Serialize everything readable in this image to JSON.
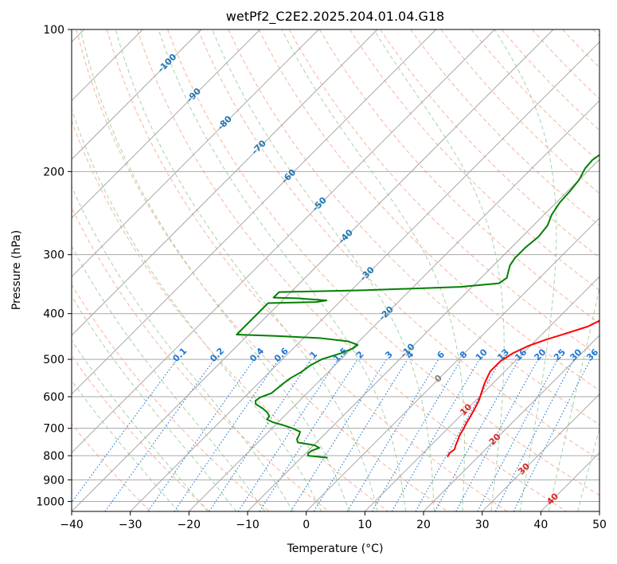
{
  "chart_data": {
    "type": "line",
    "title": "wetPf2_C2E2.2025.204.01.04.G18",
    "xlabel": "Temperature (°C)",
    "ylabel": "Pressure (hPa)",
    "xlim": [
      -40,
      50
    ],
    "ylim": [
      1050,
      100
    ],
    "y_scale": "log",
    "x_ticks": [
      "−40",
      "−30",
      "−20",
      "−10",
      "0",
      "10",
      "20",
      "30",
      "40",
      "50"
    ],
    "y_ticks": [
      {
        "p": 100,
        "label": "100"
      },
      {
        "p": 200,
        "label": "200"
      },
      {
        "p": 300,
        "label": "300"
      },
      {
        "p": 400,
        "label": "400"
      },
      {
        "p": 500,
        "label": "500"
      },
      {
        "p": 600,
        "label": "600"
      },
      {
        "p": 700,
        "label": "700"
      },
      {
        "p": 800,
        "label": "800"
      },
      {
        "p": 900,
        "label": "900"
      },
      {
        "p": 1000,
        "label": "1000"
      }
    ],
    "grid": true,
    "colors": {
      "temperature": "#ff0000",
      "dewpoint": "#008000",
      "isotherm": "#a8a8a8",
      "dry_adiabat": "#f7b39c",
      "moist_adiabat": "#a6d3a6",
      "mixing_ratio": "#1f77d4",
      "label_blue": "#1f77b4",
      "label_red": "#d62728",
      "label_gray": "#7f7f7f"
    },
    "series": [
      {
        "key": "temperature",
        "points": [
          [
            14.8,
            805
          ],
          [
            14.5,
            790
          ],
          [
            14.7,
            775
          ],
          [
            14.2,
            760
          ],
          [
            13.8,
            745
          ],
          [
            13.2,
            725
          ],
          [
            12.7,
            700
          ],
          [
            12.2,
            680
          ],
          [
            11.8,
            660
          ],
          [
            11.2,
            635
          ],
          [
            10.5,
            610
          ],
          [
            9.5,
            585
          ],
          [
            8.5,
            560
          ],
          [
            7.5,
            530
          ],
          [
            7.5,
            505
          ],
          [
            8.3,
            485
          ],
          [
            9.7,
            468
          ],
          [
            11.6,
            454
          ],
          [
            13.9,
            441
          ],
          [
            16.5,
            426
          ],
          [
            17.6,
            413
          ],
          [
            17.8,
            400
          ],
          [
            17.5,
            388
          ],
          [
            17.8,
            375
          ],
          [
            17.5,
            365
          ],
          [
            16.5,
            353
          ],
          [
            15.0,
            342
          ],
          [
            13.5,
            325
          ],
          [
            11.8,
            308
          ],
          [
            10.0,
            292
          ],
          [
            8.5,
            277
          ],
          [
            7.2,
            262
          ],
          [
            5.9,
            248
          ],
          [
            4.5,
            235
          ],
          [
            3.2,
            222
          ],
          [
            2.1,
            210
          ],
          [
            0.7,
            195
          ],
          [
            -0.5,
            182
          ],
          [
            -1.8,
            169
          ],
          [
            -3.0,
            156
          ],
          [
            -4.5,
            145
          ],
          [
            -6.0,
            135
          ],
          [
            -7.4,
            126
          ],
          [
            -8.1,
            118
          ],
          [
            -8.3,
            112
          ],
          [
            -7.9,
            108
          ],
          [
            -7.2,
            104
          ],
          [
            -6.6,
            101
          ]
        ]
      },
      {
        "key": "dewpoint",
        "points": [
          [
            -5.5,
            808
          ],
          [
            -9.2,
            800
          ],
          [
            -9.6,
            790
          ],
          [
            -9.4,
            780
          ],
          [
            -8.6,
            770
          ],
          [
            -9.9,
            760
          ],
          [
            -13.2,
            750
          ],
          [
            -13.9,
            738
          ],
          [
            -14.2,
            725
          ],
          [
            -14.6,
            712
          ],
          [
            -16.5,
            700
          ],
          [
            -18.5,
            690
          ],
          [
            -20.8,
            680
          ],
          [
            -22.4,
            670
          ],
          [
            -22.5,
            660
          ],
          [
            -23.5,
            648
          ],
          [
            -25.0,
            635
          ],
          [
            -26.9,
            622
          ],
          [
            -27.5,
            612
          ],
          [
            -27.3,
            602
          ],
          [
            -26.1,
            590
          ],
          [
            -25.9,
            576
          ],
          [
            -25.7,
            562
          ],
          [
            -25.4,
            548
          ],
          [
            -24.6,
            532
          ],
          [
            -24.2,
            515
          ],
          [
            -23.3,
            500
          ],
          [
            -21.0,
            485
          ],
          [
            -19.8,
            474
          ],
          [
            -19.6,
            466
          ],
          [
            -21.8,
            458
          ],
          [
            -27.0,
            451
          ],
          [
            -35.0,
            446
          ],
          [
            -42.0,
            443
          ],
          [
            -42.0,
            380
          ],
          [
            -34.0,
            378
          ],
          [
            -32.5,
            375
          ],
          [
            -38.0,
            371
          ],
          [
            -42.0,
            370
          ],
          [
            -42.0,
            360
          ],
          [
            -28.0,
            357
          ],
          [
            -12.0,
            351
          ],
          [
            -6.0,
            345
          ],
          [
            -5.6,
            336
          ],
          [
            -6.4,
            326
          ],
          [
            -7.2,
            316
          ],
          [
            -7.6,
            305
          ],
          [
            -7.6,
            290
          ],
          [
            -7.2,
            275
          ],
          [
            -7.6,
            260
          ],
          [
            -8.7,
            247
          ],
          [
            -9.4,
            233
          ],
          [
            -9.6,
            220
          ],
          [
            -10.0,
            208
          ],
          [
            -10.9,
            197
          ],
          [
            -11.1,
            189
          ],
          [
            -10.5,
            181
          ],
          [
            -9.4,
            171
          ],
          [
            -8.4,
            161
          ],
          [
            -7.0,
            150
          ],
          [
            -5.0,
            139
          ],
          [
            -3.4,
            130
          ],
          [
            -1.9,
            121
          ],
          [
            -1.0,
            113
          ],
          [
            -0.2,
            106
          ],
          [
            0.5,
            102
          ],
          [
            1.2,
            99
          ]
        ]
      }
    ],
    "annotations": {
      "isotherm_labels": [
        "-100",
        "-90",
        "-80",
        "-70",
        "-60",
        "-50",
        "-40",
        "-30",
        "-20",
        "-10",
        "0",
        "10",
        "20",
        "30",
        "40"
      ],
      "mixing_ratio_labels": [
        "0.1",
        "0.2",
        "0.4",
        "0.6",
        "1",
        "1.5",
        "2",
        "3",
        "4",
        "6",
        "8",
        "10",
        "13",
        "16",
        "20",
        "25",
        "30",
        "36"
      ]
    }
  }
}
